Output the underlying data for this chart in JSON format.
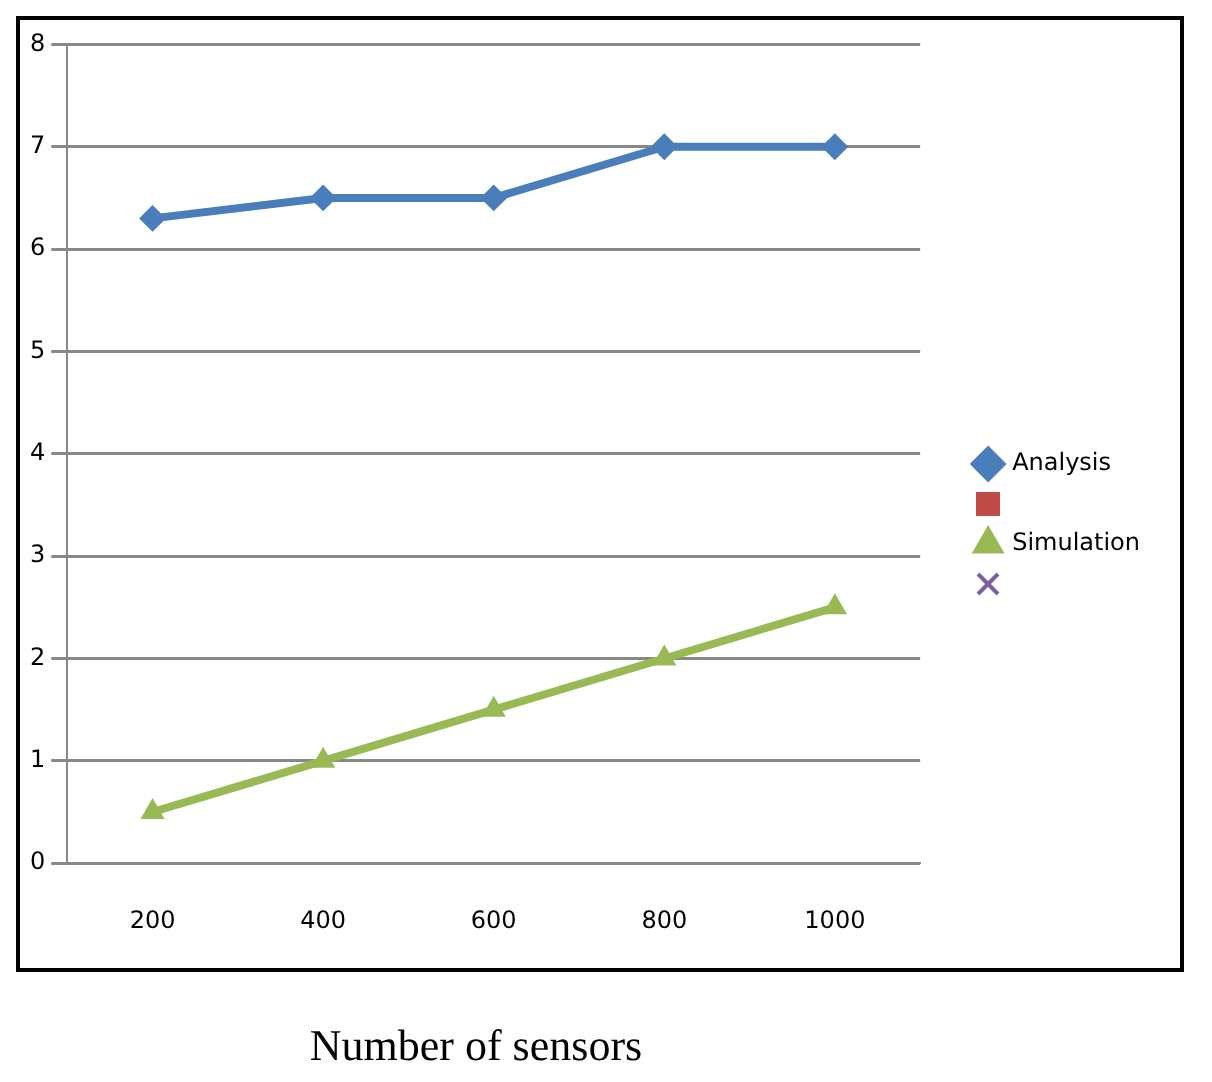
{
  "chart_data": {
    "type": "line",
    "xlabel": "Number of sensors",
    "categories": [
      "200",
      "400",
      "600",
      "800",
      "1000"
    ],
    "series": [
      {
        "name": "Analysis",
        "color": "#4a7ebb",
        "marker": "diamond",
        "values": [
          6.3,
          6.5,
          6.5,
          7,
          7
        ]
      },
      {
        "name": "Simulation",
        "color": "#98b954",
        "marker": "triangle",
        "values": [
          0.5,
          1,
          1.5,
          2,
          2.5
        ]
      }
    ],
    "ylim": [
      0,
      8
    ],
    "yticks": [
      0,
      1,
      2,
      3,
      4,
      5,
      6,
      7,
      8
    ],
    "grid": "y",
    "legend": "right"
  }
}
